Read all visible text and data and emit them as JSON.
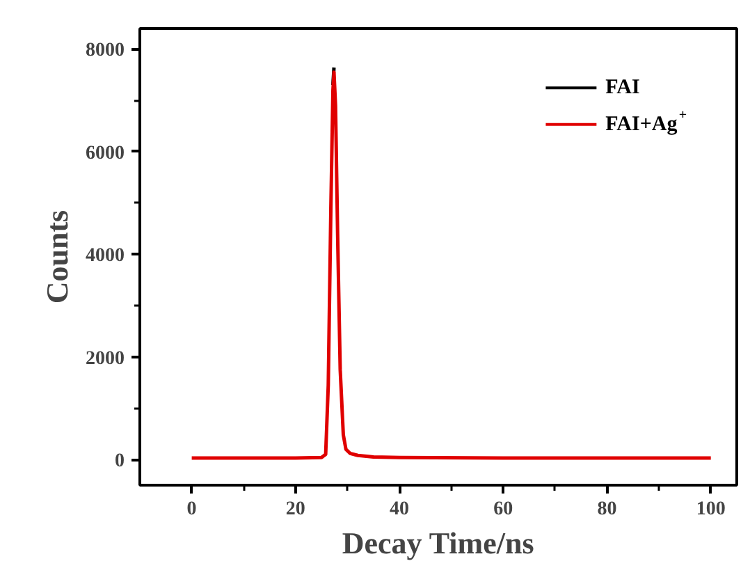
{
  "chart_data": {
    "type": "line",
    "xlabel": "Decay Time/ns",
    "ylabel": "Counts",
    "x": [
      0,
      10,
      20,
      25,
      25.8,
      26.3,
      26.8,
      27.2,
      27.4,
      27.7,
      28.1,
      28.6,
      29.2,
      29.7,
      30.5,
      32,
      35,
      40,
      60,
      80,
      100
    ],
    "series": [
      {
        "name": "FAI",
        "color": "#000000",
        "values": [
          null,
          null,
          null,
          null,
          null,
          null,
          null,
          7300,
          7640,
          null,
          null,
          null,
          null,
          null,
          null,
          null,
          null,
          null,
          null,
          null,
          null
        ]
      },
      {
        "name": "FAI+Ag$^{+}$",
        "color": "#e00000",
        "values": [
          30,
          30,
          30,
          40,
          100,
          1450,
          4900,
          7200,
          7550,
          6900,
          4400,
          1750,
          480,
          200,
          120,
          80,
          50,
          40,
          30,
          30,
          30
        ]
      }
    ],
    "xlim": [
      -10,
      105
    ],
    "ylim": [
      -500,
      8400
    ],
    "xticks": [
      0,
      20,
      40,
      60,
      80,
      100
    ],
    "yticks": [
      0,
      2000,
      4000,
      6000,
      8000
    ],
    "grid": false,
    "legend": "top right",
    "marker": "none",
    "line_style": "solid"
  }
}
